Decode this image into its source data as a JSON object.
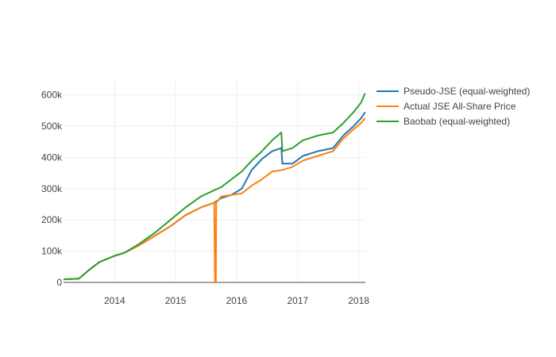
{
  "chart_data": {
    "type": "line",
    "title": "",
    "xlabel": "",
    "ylabel": "",
    "grid": true,
    "legend_position": "top-right",
    "x_ticks": [
      "2014",
      "2015",
      "2016",
      "2017",
      "2018"
    ],
    "y_ticks": [
      "0",
      "100k",
      "200k",
      "300k",
      "400k",
      "500k",
      "600k"
    ],
    "y_tick_values": [
      0,
      100000,
      200000,
      300000,
      400000,
      500000,
      600000
    ],
    "x_range": [
      "2013-03-01",
      "2018-02-10"
    ],
    "ylim": [
      0,
      650000
    ],
    "series": [
      {
        "name": "Pseudo-JSE (equal-weighted)",
        "color": "#1f77b4",
        "points": [
          [
            "2013-03-01",
            10000
          ],
          [
            "2013-06-01",
            12000
          ],
          [
            "2013-08-01",
            40000
          ],
          [
            "2013-10-01",
            65000
          ],
          [
            "2014-01-01",
            85000
          ],
          [
            "2014-03-01",
            95000
          ],
          [
            "2014-06-01",
            120000
          ],
          [
            "2014-09-01",
            150000
          ],
          [
            "2014-12-01",
            180000
          ],
          [
            "2015-03-01",
            215000
          ],
          [
            "2015-06-01",
            240000
          ],
          [
            "2015-08-20",
            255000
          ],
          [
            "2015-10-01",
            270000
          ],
          [
            "2015-12-01",
            280000
          ],
          [
            "2016-02-01",
            300000
          ],
          [
            "2016-04-01",
            360000
          ],
          [
            "2016-06-01",
            395000
          ],
          [
            "2016-08-01",
            420000
          ],
          [
            "2016-09-25",
            430000
          ],
          [
            "2016-10-01",
            380000
          ],
          [
            "2016-12-01",
            380000
          ],
          [
            "2017-02-01",
            405000
          ],
          [
            "2017-05-01",
            420000
          ],
          [
            "2017-08-01",
            430000
          ],
          [
            "2017-10-01",
            470000
          ],
          [
            "2017-12-01",
            500000
          ],
          [
            "2018-01-15",
            525000
          ],
          [
            "2018-02-08",
            545000
          ]
        ]
      },
      {
        "name": "Actual JSE All-Share Price",
        "color": "#ff7f0e",
        "points": [
          [
            "2013-03-01",
            10000
          ],
          [
            "2013-06-01",
            12000
          ],
          [
            "2013-08-01",
            40000
          ],
          [
            "2013-10-01",
            65000
          ],
          [
            "2014-01-01",
            85000
          ],
          [
            "2014-03-01",
            95000
          ],
          [
            "2014-06-01",
            120000
          ],
          [
            "2014-09-01",
            150000
          ],
          [
            "2014-12-01",
            180000
          ],
          [
            "2015-03-01",
            215000
          ],
          [
            "2015-06-01",
            240000
          ],
          [
            "2015-08-20",
            255000
          ],
          [
            "2015-08-25",
            0
          ],
          [
            "2015-08-30",
            0
          ],
          [
            "2015-09-01",
            255000
          ],
          [
            "2015-10-01",
            275000
          ],
          [
            "2015-12-01",
            280000
          ],
          [
            "2016-02-01",
            285000
          ],
          [
            "2016-04-01",
            310000
          ],
          [
            "2016-06-01",
            330000
          ],
          [
            "2016-08-01",
            355000
          ],
          [
            "2016-10-01",
            360000
          ],
          [
            "2016-12-01",
            370000
          ],
          [
            "2017-02-01",
            390000
          ],
          [
            "2017-05-01",
            405000
          ],
          [
            "2017-08-01",
            420000
          ],
          [
            "2017-10-01",
            460000
          ],
          [
            "2017-12-01",
            490000
          ],
          [
            "2018-01-15",
            510000
          ],
          [
            "2018-02-08",
            525000
          ]
        ]
      },
      {
        "name": "Baobab (equal-weighted)",
        "color": "#2ca02c",
        "points": [
          [
            "2013-03-01",
            10000
          ],
          [
            "2013-06-01",
            12000
          ],
          [
            "2013-08-01",
            40000
          ],
          [
            "2013-10-01",
            65000
          ],
          [
            "2014-01-01",
            85000
          ],
          [
            "2014-03-01",
            95000
          ],
          [
            "2014-06-01",
            125000
          ],
          [
            "2014-09-01",
            160000
          ],
          [
            "2014-12-01",
            200000
          ],
          [
            "2015-03-01",
            240000
          ],
          [
            "2015-06-01",
            275000
          ],
          [
            "2015-08-20",
            295000
          ],
          [
            "2015-10-01",
            305000
          ],
          [
            "2015-12-01",
            330000
          ],
          [
            "2016-02-01",
            355000
          ],
          [
            "2016-04-01",
            390000
          ],
          [
            "2016-06-01",
            420000
          ],
          [
            "2016-08-01",
            455000
          ],
          [
            "2016-09-25",
            480000
          ],
          [
            "2016-10-01",
            420000
          ],
          [
            "2016-12-01",
            430000
          ],
          [
            "2017-02-01",
            455000
          ],
          [
            "2017-05-01",
            470000
          ],
          [
            "2017-08-01",
            480000
          ],
          [
            "2017-10-01",
            510000
          ],
          [
            "2017-12-01",
            545000
          ],
          [
            "2018-01-15",
            575000
          ],
          [
            "2018-02-08",
            605000
          ]
        ]
      }
    ]
  }
}
